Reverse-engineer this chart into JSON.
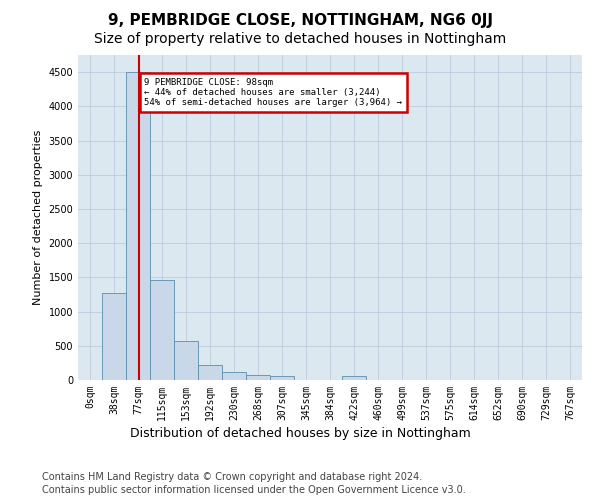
{
  "title": "9, PEMBRIDGE CLOSE, NOTTINGHAM, NG6 0JJ",
  "subtitle": "Size of property relative to detached houses in Nottingham",
  "xlabel": "Distribution of detached houses by size in Nottingham",
  "ylabel": "Number of detached properties",
  "footer_line1": "Contains HM Land Registry data © Crown copyright and database right 2024.",
  "footer_line2": "Contains public sector information licensed under the Open Government Licence v3.0.",
  "bin_labels": [
    "0sqm",
    "38sqm",
    "77sqm",
    "115sqm",
    "153sqm",
    "192sqm",
    "230sqm",
    "268sqm",
    "307sqm",
    "345sqm",
    "384sqm",
    "422sqm",
    "460sqm",
    "499sqm",
    "537sqm",
    "575sqm",
    "614sqm",
    "652sqm",
    "690sqm",
    "729sqm",
    "767sqm"
  ],
  "bar_values": [
    0,
    1270,
    4500,
    1460,
    575,
    225,
    110,
    75,
    55,
    0,
    0,
    55,
    0,
    0,
    0,
    0,
    0,
    0,
    0,
    0,
    0
  ],
  "bar_color": "#c8d8e8",
  "bar_edge_color": "#5b8db0",
  "vline_color": "#cc0000",
  "annotation_text": "9 PEMBRIDGE CLOSE: 98sqm\n← 44% of detached houses are smaller (3,244)\n54% of semi-detached houses are larger (3,964) →",
  "annotation_box_edgecolor": "#cc0000",
  "ylim_max": 4750,
  "yticks": [
    0,
    500,
    1000,
    1500,
    2000,
    2500,
    3000,
    3500,
    4000,
    4500
  ],
  "grid_color": "#bbccdd",
  "background_color": "#dce8f0",
  "title_fontsize": 11,
  "subtitle_fontsize": 10,
  "ylabel_fontsize": 8,
  "xlabel_fontsize": 9,
  "tick_fontsize": 7,
  "footer_fontsize": 7
}
